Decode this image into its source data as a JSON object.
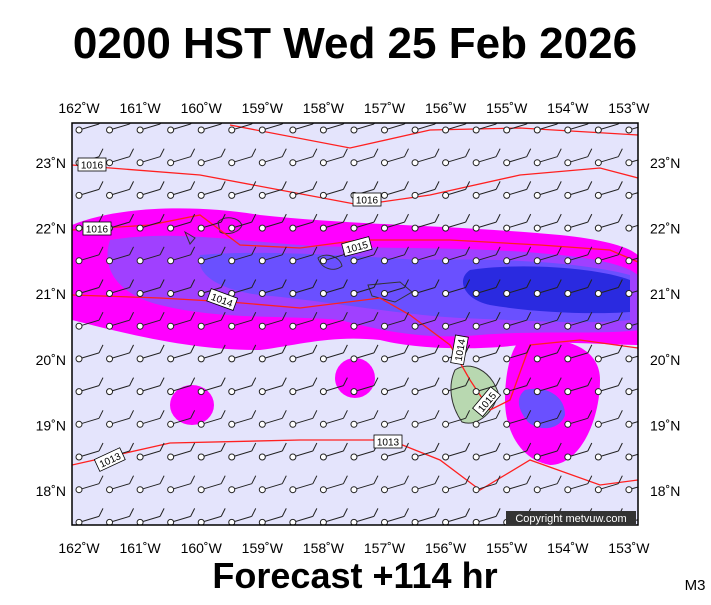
{
  "header": {
    "title": "0200 HST Wed 25 Feb 2026"
  },
  "map": {
    "lon_labels": [
      "162˚W",
      "161˚W",
      "160˚W",
      "159˚W",
      "158˚W",
      "157˚W",
      "156˚W",
      "155˚W",
      "154˚W",
      "153˚W"
    ],
    "lat_labels": [
      "23˚N",
      "22˚N",
      "21˚N",
      "20˚N",
      "19˚N",
      "18˚N"
    ],
    "isobar_labels": [
      "1016",
      "1016",
      "1016",
      "1015",
      "1014",
      "1014",
      "1015",
      "1013",
      "1013"
    ],
    "copyright": "Copyright metvuw.com"
  },
  "footer": {
    "forecast": "Forecast +114 hr",
    "model": "M3"
  }
}
